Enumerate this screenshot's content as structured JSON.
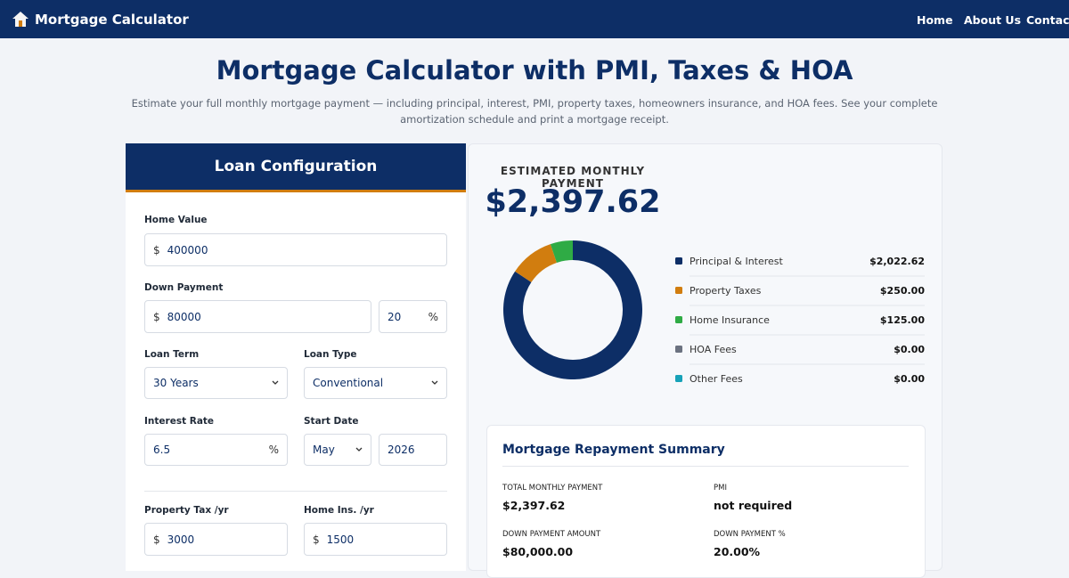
{
  "header": {
    "brand": "Mortgage Calculator",
    "nav": [
      "Home",
      "About Us",
      "Contact"
    ]
  },
  "hero": {
    "title": "Mortgage Calculator with PMI, Taxes & HOA",
    "subtitle": "Estimate your full monthly mortgage payment — including principal, interest, PMI, property taxes, homeowners insurance, and HOA fees. See your complete amortization schedule and print a mortgage receipt."
  },
  "form": {
    "title": "Loan Configuration",
    "home_value": {
      "label": "Home Value",
      "prefix": "$",
      "value": "400000"
    },
    "down_payment": {
      "label": "Down Payment",
      "prefix": "$",
      "value": "80000",
      "percent": "20",
      "suffix": "%"
    },
    "loan_term": {
      "label": "Loan Term",
      "value": "30 Years"
    },
    "loan_type": {
      "label": "Loan Type",
      "value": "Conventional"
    },
    "interest_rate": {
      "label": "Interest Rate",
      "value": "6.5",
      "suffix": "%"
    },
    "start_date": {
      "label": "Start Date",
      "month": "May",
      "year": "2026"
    },
    "property_tax": {
      "label": "Property Tax /yr",
      "prefix": "$",
      "value": "3000"
    },
    "home_insurance": {
      "label": "Home Ins. /yr",
      "prefix": "$",
      "value": "1500"
    }
  },
  "result": {
    "heading": "ESTIMATED MONTHLY PAYMENT",
    "amount": "$2,397.62"
  },
  "breakdown": {
    "items": [
      {
        "name": "Principal & Interest",
        "color": "#0d2e66",
        "amount": {
          "value": 2022.62,
          "label": "$2,022.62"
        }
      },
      {
        "name": "Property Taxes",
        "color": "#d17d0f",
        "amount": {
          "value": 250,
          "label": "$250.00"
        }
      },
      {
        "name": "Home Insurance",
        "color": "#2fab45",
        "amount": {
          "value": 125,
          "label": "$125.00"
        }
      },
      {
        "name": "HOA Fees",
        "color": "#6b7280",
        "amount": {
          "value": 0,
          "label": "$0.00"
        }
      },
      {
        "name": "Other Fees",
        "color": "#17a2b8",
        "amount": {
          "value": 0,
          "label": "$0.00"
        }
      }
    ]
  },
  "summary": {
    "title": "Mortgage Repayment Summary",
    "items": [
      {
        "label": "TOTAL MONTHLY PAYMENT",
        "value": "$2,397.62"
      },
      {
        "label": "PMI",
        "value": "not required"
      },
      {
        "label": "DOWN PAYMENT AMOUNT",
        "value": "$80,000.00"
      },
      {
        "label": "DOWN PAYMENT %",
        "value": "20.00%"
      }
    ]
  }
}
